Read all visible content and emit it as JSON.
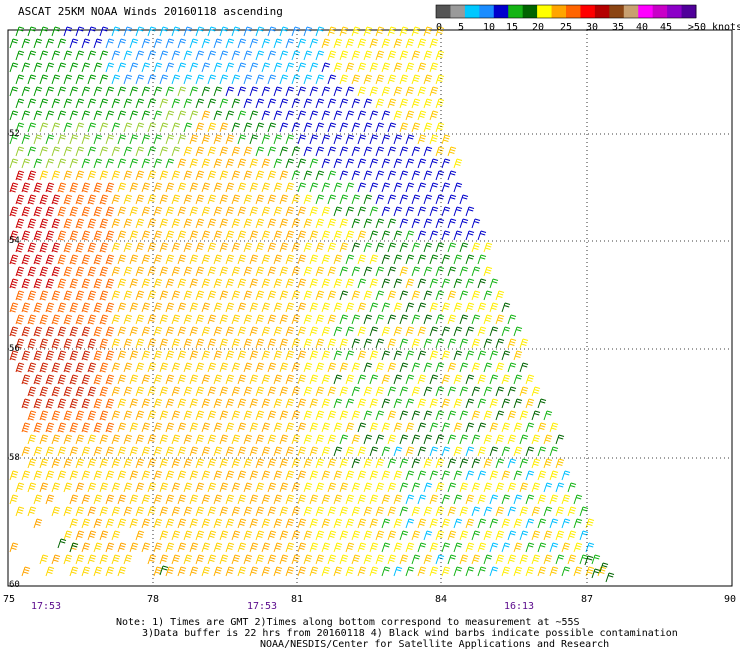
{
  "title": "ASCAT 25KM NOAA Winds 20160118 ascending",
  "colorbar": {
    "colors": [
      "#555555",
      "#9a9a9a",
      "#00c8ff",
      "#1a8cff",
      "#0000cc",
      "#14b414",
      "#006400",
      "#ffff00",
      "#ffa500",
      "#ff6400",
      "#ff0000",
      "#b40000",
      "#8b4513",
      "#c8a070",
      "#ff00ff",
      "#c800c8",
      "#8c00c8",
      "#50009a"
    ],
    "ticks": [
      "0",
      "5",
      "10",
      "15",
      "20",
      "25",
      "30",
      "35",
      "40",
      "45",
      ">50 knots"
    ]
  },
  "axes": {
    "lat_labels": [
      "52",
      "54",
      "56",
      "58",
      "60"
    ],
    "lon_labels": [
      "75",
      "78",
      "81",
      "84",
      "87",
      "90"
    ]
  },
  "times": [
    "17:53",
    "17:53",
    "16:13"
  ],
  "notes": [
    "Note: 1) Times are GMT 2)Times along bottom correspond to measurement at ~55S",
    "3)Data buffer is 22 hrs from 20160118 4) Black wind barbs indicate possible contamination",
    "NOAA/NESDIS/Center for Satellite Applications and Research"
  ]
}
